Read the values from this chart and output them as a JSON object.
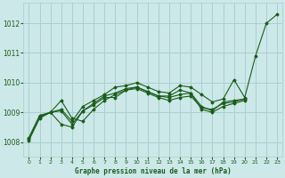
{
  "background_color": "#cce8e8",
  "grid_color": "#aacfcf",
  "line_color": "#1a5c1a",
  "xlabel": "Graphe pression niveau de la mer (hPa)",
  "ylim": [
    1007.5,
    1012.7
  ],
  "xlim": [
    -0.5,
    23.5
  ],
  "yticks": [
    1008,
    1009,
    1010,
    1011,
    1012
  ],
  "xticks": [
    0,
    1,
    2,
    3,
    4,
    5,
    6,
    7,
    8,
    9,
    10,
    11,
    12,
    13,
    14,
    15,
    16,
    17,
    18,
    19,
    20,
    21,
    22,
    23
  ],
  "lines": [
    {
      "x": [
        0,
        1,
        2,
        3,
        4,
        5,
        6,
        7,
        8,
        9,
        10,
        11,
        12,
        13,
        14,
        15,
        16,
        17,
        18,
        19,
        20,
        21,
        22,
        23
      ],
      "y": [
        1008.05,
        1008.8,
        1009.0,
        1009.1,
        1008.7,
        1009.2,
        1009.4,
        1009.6,
        1009.85,
        1009.9,
        1010.0,
        1009.85,
        1009.7,
        1009.65,
        1009.9,
        1009.85,
        1009.6,
        1009.35,
        1009.45,
        1010.1,
        1009.5,
        1010.9,
        1012.0,
        1012.3
      ]
    },
    {
      "x": [
        0,
        1,
        2,
        3,
        4,
        5,
        6,
        7,
        8,
        9,
        10,
        11,
        12,
        13,
        14,
        15,
        16,
        17,
        18,
        19,
        20
      ],
      "y": [
        1008.1,
        1008.85,
        1009.0,
        1009.4,
        1008.8,
        1008.7,
        1009.1,
        1009.4,
        1009.6,
        1009.75,
        1009.85,
        1009.7,
        1009.55,
        1009.55,
        1009.75,
        1009.65,
        1009.2,
        1009.05,
        1009.35,
        1009.4,
        1009.45
      ]
    },
    {
      "x": [
        0,
        1,
        2,
        3,
        4,
        5,
        6,
        7,
        8,
        9,
        10,
        11,
        12,
        13,
        14,
        15,
        16,
        17,
        18,
        19,
        20
      ],
      "y": [
        1008.15,
        1008.9,
        1009.0,
        1008.6,
        1008.5,
        1009.05,
        1009.25,
        1009.5,
        1009.5,
        1009.75,
        1009.8,
        1009.65,
        1009.5,
        1009.4,
        1009.5,
        1009.55,
        1009.15,
        1009.1,
        1009.3,
        1009.35,
        1009.45
      ]
    },
    {
      "x": [
        1,
        2,
        3,
        4,
        5,
        6,
        7,
        8,
        9,
        10,
        11,
        12,
        13,
        14,
        15,
        16,
        17,
        18,
        19,
        20
      ],
      "y": [
        1008.85,
        1009.0,
        1009.05,
        1008.6,
        1009.05,
        1009.3,
        1009.55,
        1009.65,
        1009.8,
        1009.85,
        1009.7,
        1009.55,
        1009.5,
        1009.6,
        1009.65,
        1009.1,
        1009.0,
        1009.2,
        1009.3,
        1009.4
      ]
    }
  ]
}
